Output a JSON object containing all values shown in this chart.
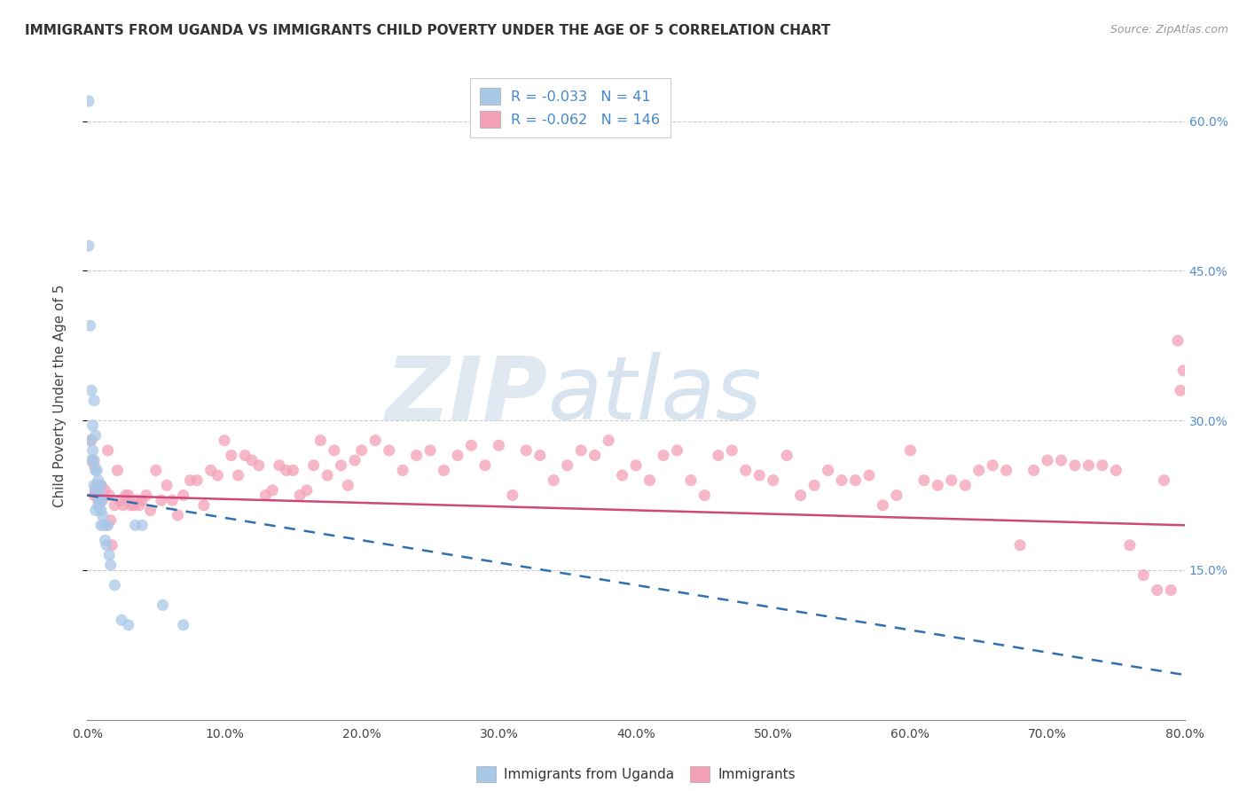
{
  "title": "IMMIGRANTS FROM UGANDA VS IMMIGRANTS CHILD POVERTY UNDER THE AGE OF 5 CORRELATION CHART",
  "source": "Source: ZipAtlas.com",
  "ylabel": "Child Poverty Under the Age of 5",
  "xlim": [
    0.0,
    0.8
  ],
  "ylim": [
    0.0,
    0.65
  ],
  "xticks": [
    0.0,
    0.1,
    0.2,
    0.3,
    0.4,
    0.5,
    0.6,
    0.7,
    0.8
  ],
  "yticks": [
    0.15,
    0.3,
    0.45,
    0.6
  ],
  "yticklabels_right": [
    "15.0%",
    "30.0%",
    "45.0%",
    "60.0%"
  ],
  "legend_r_uganda": "-0.033",
  "legend_n_uganda": "41",
  "legend_r_immigrants": "-0.062",
  "legend_n_immigrants": "146",
  "legend_label_uganda": "Immigrants from Uganda",
  "legend_label_immigrants": "Immigrants",
  "watermark_zip": "ZIP",
  "watermark_atlas": "atlas",
  "blue_scatter_color": "#a8c8e8",
  "pink_scatter_color": "#f4a0b8",
  "blue_line_color": "#3070b0",
  "pink_line_color": "#d04878",
  "background_color": "#ffffff",
  "grid_color": "#cccccc",
  "uganda_points_x": [
    0.001,
    0.001,
    0.002,
    0.002,
    0.003,
    0.003,
    0.004,
    0.004,
    0.005,
    0.005,
    0.005,
    0.006,
    0.006,
    0.006,
    0.006,
    0.007,
    0.007,
    0.008,
    0.008,
    0.008,
    0.009,
    0.009,
    0.009,
    0.01,
    0.01,
    0.01,
    0.01,
    0.011,
    0.012,
    0.013,
    0.014,
    0.015,
    0.016,
    0.017,
    0.02,
    0.025,
    0.03,
    0.035,
    0.04,
    0.055,
    0.07
  ],
  "uganda_points_y": [
    0.62,
    0.475,
    0.395,
    0.28,
    0.33,
    0.26,
    0.295,
    0.27,
    0.32,
    0.26,
    0.235,
    0.285,
    0.25,
    0.23,
    0.21,
    0.25,
    0.23,
    0.24,
    0.23,
    0.215,
    0.225,
    0.22,
    0.215,
    0.235,
    0.22,
    0.21,
    0.195,
    0.205,
    0.195,
    0.18,
    0.175,
    0.195,
    0.165,
    0.155,
    0.135,
    0.1,
    0.095,
    0.195,
    0.195,
    0.115,
    0.095
  ],
  "immigrants_points_x": [
    0.003,
    0.004,
    0.005,
    0.005,
    0.006,
    0.007,
    0.008,
    0.009,
    0.01,
    0.011,
    0.013,
    0.014,
    0.015,
    0.016,
    0.017,
    0.018,
    0.02,
    0.022,
    0.024,
    0.026,
    0.028,
    0.03,
    0.032,
    0.034,
    0.036,
    0.038,
    0.04,
    0.043,
    0.046,
    0.05,
    0.054,
    0.058,
    0.062,
    0.066,
    0.07,
    0.075,
    0.08,
    0.085,
    0.09,
    0.095,
    0.1,
    0.105,
    0.11,
    0.115,
    0.12,
    0.125,
    0.13,
    0.135,
    0.14,
    0.145,
    0.15,
    0.155,
    0.16,
    0.165,
    0.17,
    0.175,
    0.18,
    0.185,
    0.19,
    0.195,
    0.2,
    0.21,
    0.22,
    0.23,
    0.24,
    0.25,
    0.26,
    0.27,
    0.28,
    0.29,
    0.3,
    0.31,
    0.32,
    0.33,
    0.34,
    0.35,
    0.36,
    0.37,
    0.38,
    0.39,
    0.4,
    0.41,
    0.42,
    0.43,
    0.44,
    0.45,
    0.46,
    0.47,
    0.48,
    0.49,
    0.5,
    0.51,
    0.52,
    0.53,
    0.54,
    0.55,
    0.56,
    0.57,
    0.58,
    0.59,
    0.6,
    0.61,
    0.62,
    0.63,
    0.64,
    0.65,
    0.66,
    0.67,
    0.68,
    0.69,
    0.7,
    0.71,
    0.72,
    0.73,
    0.74,
    0.75,
    0.76,
    0.77,
    0.78,
    0.785,
    0.79,
    0.795,
    0.797,
    0.799
  ],
  "immigrants_points_y": [
    0.28,
    0.26,
    0.255,
    0.225,
    0.23,
    0.235,
    0.22,
    0.225,
    0.235,
    0.22,
    0.23,
    0.195,
    0.27,
    0.225,
    0.2,
    0.175,
    0.215,
    0.25,
    0.22,
    0.215,
    0.225,
    0.225,
    0.215,
    0.215,
    0.22,
    0.215,
    0.22,
    0.225,
    0.21,
    0.25,
    0.22,
    0.235,
    0.22,
    0.205,
    0.225,
    0.24,
    0.24,
    0.215,
    0.25,
    0.245,
    0.28,
    0.265,
    0.245,
    0.265,
    0.26,
    0.255,
    0.225,
    0.23,
    0.255,
    0.25,
    0.25,
    0.225,
    0.23,
    0.255,
    0.28,
    0.245,
    0.27,
    0.255,
    0.235,
    0.26,
    0.27,
    0.28,
    0.27,
    0.25,
    0.265,
    0.27,
    0.25,
    0.265,
    0.275,
    0.255,
    0.275,
    0.225,
    0.27,
    0.265,
    0.24,
    0.255,
    0.27,
    0.265,
    0.28,
    0.245,
    0.255,
    0.24,
    0.265,
    0.27,
    0.24,
    0.225,
    0.265,
    0.27,
    0.25,
    0.245,
    0.24,
    0.265,
    0.225,
    0.235,
    0.25,
    0.24,
    0.24,
    0.245,
    0.215,
    0.225,
    0.27,
    0.24,
    0.235,
    0.24,
    0.235,
    0.25,
    0.255,
    0.25,
    0.175,
    0.25,
    0.26,
    0.26,
    0.255,
    0.255,
    0.255,
    0.25,
    0.175,
    0.145,
    0.13,
    0.24,
    0.13,
    0.38,
    0.33,
    0.35
  ],
  "blue_trend_x0": 0.0,
  "blue_trend_y0": 0.225,
  "blue_trend_x1": 0.8,
  "blue_trend_y1": 0.045,
  "pink_trend_x0": 0.0,
  "pink_trend_y0": 0.225,
  "pink_trend_x1": 0.8,
  "pink_trend_y1": 0.195
}
